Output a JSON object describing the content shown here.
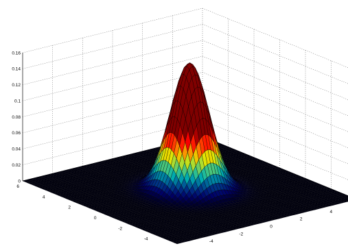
{
  "chart_data": {
    "type": "surface",
    "title": "",
    "xlabel": "",
    "ylabel": "",
    "zlabel": "",
    "xlim": [
      -6,
      6
    ],
    "ylim": [
      -6,
      6
    ],
    "zlim": [
      0,
      0.16
    ],
    "grid": true,
    "colormap": "jet",
    "x_ticks": [
      "-6",
      "-4",
      "-2",
      "0",
      "2",
      "4"
    ],
    "y_ticks": [
      "-6",
      "-4",
      "-2",
      "0",
      "2",
      "4",
      "6"
    ],
    "z_ticks": [
      "0",
      "0.02",
      "0.04",
      "0.06",
      "0.08",
      "0.1",
      "0.12",
      "0.14",
      "0.16"
    ],
    "surface": {
      "function": "bivariate normal density",
      "mean": [
        0,
        0
      ],
      "sigma": 1.0,
      "peak_z": 0.16,
      "grid_step": 0.2
    }
  }
}
